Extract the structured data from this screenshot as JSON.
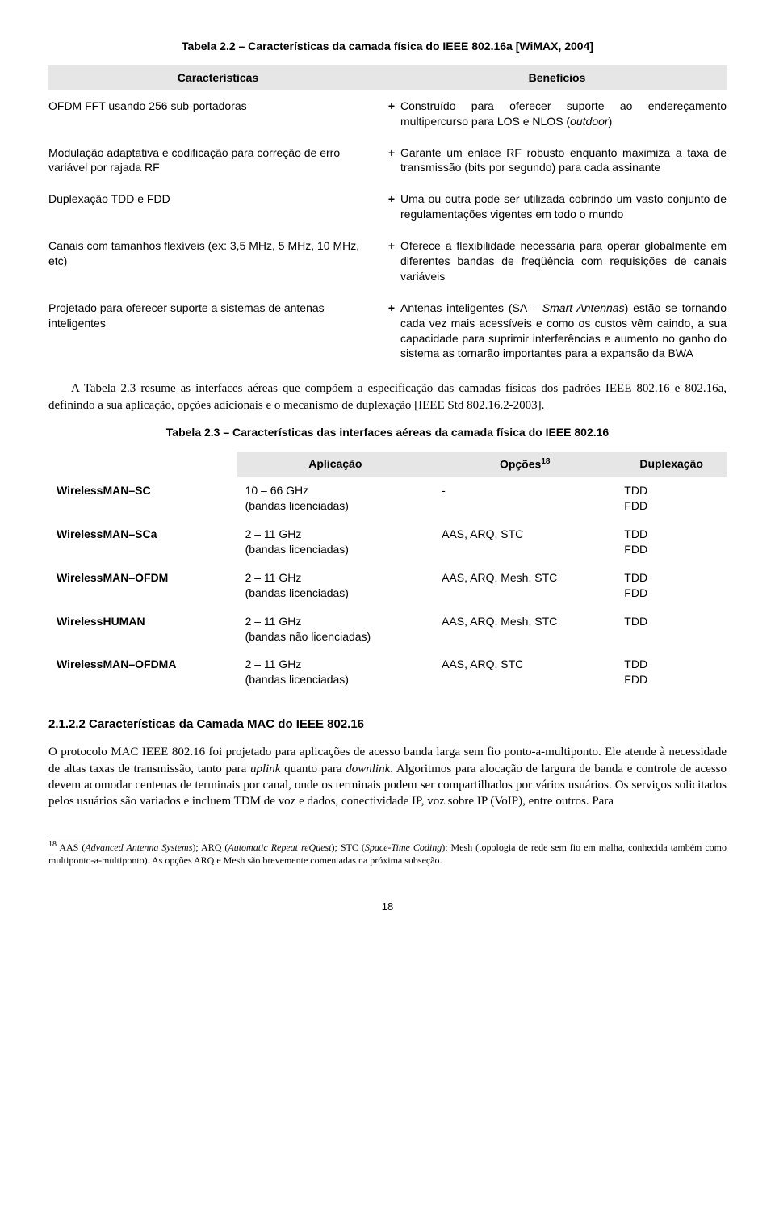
{
  "table22": {
    "title": "Tabela 2.2 – Características da camada física do IEEE 802.16a [WiMAX, 2004]",
    "header_left": "Características",
    "header_right": "Benefícios",
    "rows": [
      {
        "left": "OFDM FFT usando 256 sub-portadoras",
        "right_html": "Construído para oferecer suporte ao endereçamento multipercurso para LOS e NLOS (<i>outdoor</i>)"
      },
      {
        "left": "Modulação adaptativa e codificação para correção de erro variável por rajada RF",
        "right_html": "Garante um enlace RF robusto enquanto maximiza a taxa de transmissão (bits por segundo) para cada assinante"
      },
      {
        "left": "Duplexação TDD e FDD",
        "right_html": "Uma ou outra pode ser utilizada cobrindo um vasto conjunto de regulamentações vigentes em todo o mundo"
      },
      {
        "left": "Canais com tamanhos flexíveis (ex: 3,5 MHz, 5 MHz, 10 MHz, etc)",
        "right_html": "Oferece a flexibilidade necessária para operar globalmente em diferentes bandas de freqüência com requisições de canais variáveis"
      },
      {
        "left": "Projetado para oferecer suporte a sistemas de antenas inteligentes",
        "right_html": "Antenas inteligentes (SA – <i>Smart Antennas</i>) estão se tornando cada vez mais acessíveis e como os custos vêm caindo, a sua capacidade para suprimir interferências e aumento no ganho do sistema as tornarão importantes para a expansão da BWA"
      }
    ]
  },
  "para1_html": "<span class=\"ind\"></span>A Tabela 2.3 resume as interfaces aéreas que compõem a especificação das camadas físicas dos padrões IEEE 802.16 e 802.16a, definindo a sua aplicação, opções adicionais e o mecanismo de duplexação [IEEE Std 802.16.2-2003].",
  "table23": {
    "title": "Tabela 2.3 – Características das interfaces aéreas da camada física do IEEE 802.16",
    "headers": {
      "app": "Aplicação",
      "opts_html": "Opções<span class=\"sup\">18</span>",
      "dup": "Duplexação"
    },
    "rows": [
      {
        "name": "WirelessMAN–SC",
        "app_html": "10 – 66 GHz<br>(bandas licenciadas)",
        "opts": "-",
        "dup_html": "TDD<br>FDD"
      },
      {
        "name": "WirelessMAN–SCa",
        "app_html": "2 – 11 GHz<br>(bandas licenciadas)",
        "opts": "AAS, ARQ, STC",
        "dup_html": "TDD<br>FDD"
      },
      {
        "name": "WirelessMAN–OFDM",
        "app_html": "2 – 11 GHz<br>(bandas licenciadas)",
        "opts": "AAS, ARQ, Mesh, STC",
        "dup_html": "TDD<br>FDD"
      },
      {
        "name": "WirelessHUMAN",
        "app_html": "2 – 11 GHz<br>(bandas não licenciadas)",
        "opts": "AAS, ARQ, Mesh, STC",
        "dup_html": "TDD"
      },
      {
        "name": "WirelessMAN–OFDMA",
        "app_html": "2 – 11 GHz<br>(bandas licenciadas)",
        "opts": "AAS, ARQ, STC",
        "dup_html": "TDD<br>FDD"
      }
    ]
  },
  "section_heading": "2.1.2.2  Características da Camada MAC do IEEE 802.16",
  "para2_html": "O protocolo MAC IEEE 802.16 foi projetado para aplicações de acesso banda larga sem fio ponto-a-multiponto. Ele atende à necessidade de altas taxas de transmissão, tanto para <i>uplink</i> quanto para <i>downlink</i>. Algoritmos para alocação de largura de banda e controle de acesso devem acomodar centenas de terminais por canal, onde os terminais podem ser compartilhados por vários usuários. Os serviços solicitados pelos usuários são variados e incluem TDM de voz e dados, conectividade IP, voz sobre IP (VoIP), entre outros. Para",
  "footnote_html": "<span class=\"sup\">18</span> AAS (<i>Advanced Antenna Systems</i>); ARQ (<i>Automatic Repeat reQuest</i>); STC (<i>Space-Time Coding</i>); Mesh (topologia de rede sem fio em malha, conhecida também como multiponto-a-multiponto). As opções ARQ e Mesh são brevemente comentadas na próxima subseção.",
  "page_number": "18",
  "plus_glyph": "+",
  "colors": {
    "header_bg": "#e6e6e6",
    "text": "#000000",
    "background": "#ffffff"
  }
}
